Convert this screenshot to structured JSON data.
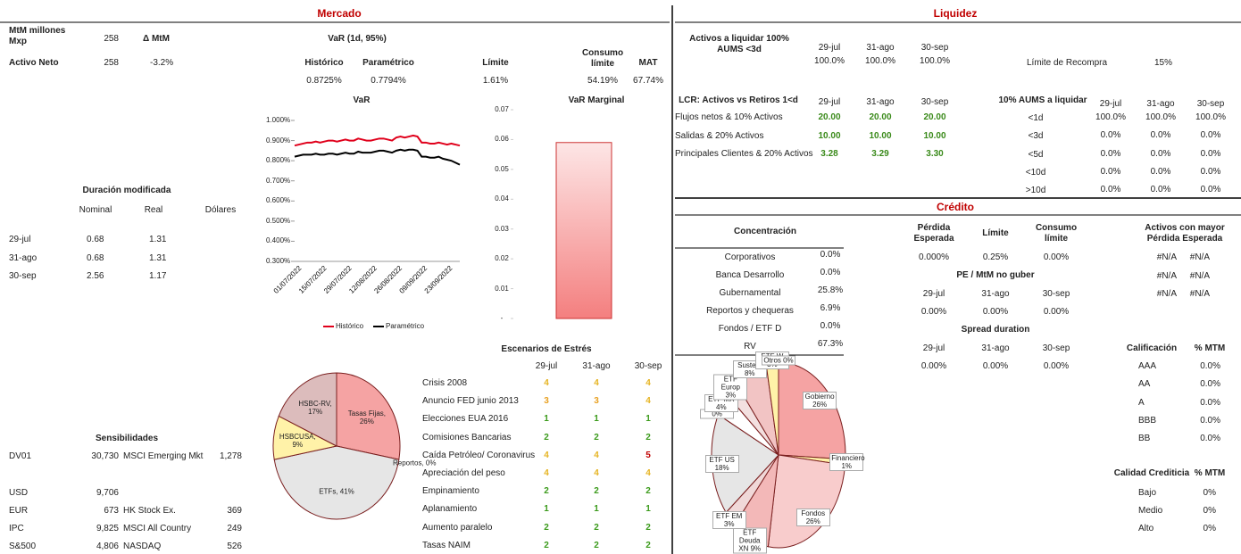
{
  "mercado": {
    "title": "Mercado",
    "mtm_label": "MtM millones Mxp",
    "mtm": "258",
    "delta_label": "Δ MtM",
    "activo_neto_label": "Activo Neto",
    "activo_neto": "258",
    "delta": "-3.2%",
    "var_table": {
      "title": "VaR (1d, 95%)",
      "headers": [
        "Histórico",
        "Paramétrico",
        "Límite",
        "Consumo límite",
        "MAT"
      ],
      "values": [
        "0.8725%",
        "0.7794%",
        "1.61%",
        "54.19%",
        "67.74%"
      ]
    },
    "var_chart": {
      "type": "line",
      "title": "VaR",
      "ylim": [
        0.3,
        1.0
      ],
      "yticks": [
        {
          "value": 1.0,
          "label": "1.000%"
        },
        {
          "value": 0.9,
          "label": "0.900%"
        },
        {
          "value": 0.8,
          "label": "0.800%"
        },
        {
          "value": 0.7,
          "label": "0.700%"
        },
        {
          "value": 0.6,
          "label": "0.600%"
        },
        {
          "value": 0.5,
          "label": "0.500%"
        },
        {
          "value": 0.4,
          "label": "0.400%"
        },
        {
          "value": 0.3,
          "label": "0.300%"
        }
      ],
      "xticks": [
        "01/07/2022",
        "15/07/2022",
        "29/07/2022",
        "12/08/2022",
        "26/08/2022",
        "09/09/2022",
        "23/09/2022"
      ],
      "series": [
        {
          "name": "Histórico",
          "color": "#e0001b",
          "values": [
            0.875,
            0.88,
            0.885,
            0.89,
            0.89,
            0.895,
            0.89,
            0.895,
            0.9,
            0.9,
            0.895,
            0.9,
            0.905,
            0.9,
            0.9,
            0.91,
            0.905,
            0.9,
            0.9,
            0.905,
            0.91,
            0.91,
            0.905,
            0.9,
            0.915,
            0.92,
            0.915,
            0.92,
            0.925,
            0.92,
            0.89,
            0.89,
            0.885,
            0.885,
            0.89,
            0.885,
            0.88,
            0.885,
            0.88,
            0.875
          ]
        },
        {
          "name": "Paramétrico",
          "color": "#000000",
          "values": [
            0.82,
            0.825,
            0.83,
            0.83,
            0.83,
            0.835,
            0.83,
            0.83,
            0.835,
            0.835,
            0.83,
            0.835,
            0.84,
            0.835,
            0.835,
            0.845,
            0.84,
            0.84,
            0.84,
            0.845,
            0.85,
            0.85,
            0.845,
            0.84,
            0.85,
            0.855,
            0.85,
            0.855,
            0.855,
            0.85,
            0.82,
            0.82,
            0.815,
            0.815,
            0.82,
            0.81,
            0.805,
            0.8,
            0.79,
            0.78
          ]
        }
      ]
    },
    "marginal_chart": {
      "type": "bar",
      "title": "VaR Marginal",
      "ylim": [
        0,
        0.07
      ],
      "yticks": [
        {
          "value": 0.07,
          "label": "0.07"
        },
        {
          "value": 0.06,
          "label": "0.06"
        },
        {
          "value": 0.05,
          "label": "0.05"
        },
        {
          "value": 0.04,
          "label": "0.04"
        },
        {
          "value": 0.03,
          "label": "0.03"
        },
        {
          "value": 0.02,
          "label": "0.02"
        },
        {
          "value": 0.01,
          "label": "0.01"
        },
        {
          "value": 0,
          "label": "-"
        }
      ],
      "values": [
        0.059
      ],
      "color": "#f47f7f"
    },
    "duracion": {
      "title": "Duración modificada",
      "headers": [
        "Nominal",
        "Real",
        "Dólares"
      ],
      "rows": [
        [
          "29-jul",
          "0.68",
          "1.31"
        ],
        [
          "31-ago",
          "0.68",
          "1.31"
        ],
        [
          "30-sep",
          "2.56",
          "1.17"
        ]
      ]
    },
    "sensibilidades": {
      "title": "Sensibilidades",
      "rows": [
        [
          "DV01",
          "30,730",
          "MSCI Emerging Mkt",
          "1,278"
        ],
        [
          "USD",
          "9,706"
        ],
        [
          "EUR",
          "673",
          "HK Stock Ex.",
          "369"
        ],
        [
          "IPC",
          "9,825",
          "MSCI All Country",
          "249"
        ],
        [
          "S&500",
          "4,806",
          "NASDAQ",
          "526"
        ]
      ]
    },
    "pie": {
      "type": "pie",
      "slices": [
        {
          "label": "Tasas Fijas, 26%",
          "value": 26,
          "color": "#f5a3a3"
        },
        {
          "label": "Reportos, 0%",
          "value": 0,
          "color": "#b09a9a"
        },
        {
          "label": "ETFs, 41%",
          "value": 41,
          "color": "#e6e6e6"
        },
        {
          "label": "HSBCUSA, 9%",
          "value": 9,
          "color": "#fff2a8"
        },
        {
          "label": "HSBC-RV, 17%",
          "value": 17,
          "color": "#dcbcbc"
        }
      ]
    },
    "estres": {
      "title": "Escenarios de Estrés",
      "headers": [
        "29-jul",
        "31-ago",
        "30-sep"
      ],
      "level_colors": {
        "1": "#3a9a1a",
        "2": "#3a9a1a",
        "3": "#e8a020",
        "4": "#e6b422",
        "5": "#c00000"
      },
      "rows": [
        [
          "Crisis 2008",
          "4",
          "4",
          "4"
        ],
        [
          "Anuncio FED junio 2013",
          "3",
          "3",
          "4"
        ],
        [
          "Elecciones EUA 2016",
          "1",
          "1",
          "1"
        ],
        [
          "Comisiones Bancarias",
          "2",
          "2",
          "2"
        ],
        [
          "Caída Petróleo/ Coronavirus",
          "4",
          "4",
          "5"
        ],
        [
          "Apreciación del peso",
          "4",
          "4",
          "4"
        ],
        [
          "Empinamiento",
          "2",
          "2",
          "2"
        ],
        [
          "Aplanamiento",
          "1",
          "1",
          "1"
        ],
        [
          "Aumento paralelo",
          "2",
          "2",
          "2"
        ],
        [
          "Tasas NAIM",
          "2",
          "2",
          "2"
        ]
      ]
    }
  },
  "liquidez": {
    "title": "Liquidez",
    "activos": {
      "label": "Activos a liquidar 100% AUMS <3d",
      "dates": [
        "29-jul",
        "31-ago",
        "30-sep"
      ],
      "values": [
        "100.0%",
        "100.0%",
        "100.0%"
      ]
    },
    "limite_label": "Límite de Recompra",
    "limite": "15%",
    "lcr": {
      "title": "LCR: Activos vs Retiros 1<d",
      "dates": [
        "29-jul",
        "31-ago",
        "30-sep"
      ],
      "rows": [
        [
          "Flujos netos & 10% Activos",
          "20.00",
          "20.00",
          "20.00"
        ],
        [
          "Salidas & 20% Activos",
          "10.00",
          "10.00",
          "10.00"
        ],
        [
          "Principales Clientes & 20% Activos",
          "3.28",
          "3.29",
          "3.30"
        ]
      ]
    },
    "aums": {
      "title": "10% AUMS a liquidar",
      "dates": [
        "29-jul",
        "31-ago",
        "30-sep"
      ],
      "rows": [
        [
          "<1d",
          "100.0%",
          "100.0%",
          "100.0%"
        ],
        [
          "<3d",
          "0.0%",
          "0.0%",
          "0.0%"
        ],
        [
          "<5d",
          "0.0%",
          "0.0%",
          "0.0%"
        ],
        [
          "<10d",
          "0.0%",
          "0.0%",
          "0.0%"
        ],
        [
          ">10d",
          "0.0%",
          "0.0%",
          "0.0%"
        ]
      ]
    }
  },
  "credito": {
    "title": "Crédito",
    "concentracion": {
      "title": "Concentración",
      "rows": [
        [
          "Corporativos",
          "0.0%"
        ],
        [
          "Banca Desarrollo",
          "0.0%"
        ],
        [
          "Gubernamental",
          "25.8%"
        ],
        [
          "Reportos y chequeras",
          "6.9%"
        ],
        [
          "Fondos / ETF D",
          "0.0%"
        ],
        [
          "RV",
          "67.3%"
        ]
      ]
    },
    "perdida": {
      "headers": [
        "Pérdida Esperada",
        "Límite",
        "Consumo límite"
      ],
      "values": [
        "0.000%",
        "0.25%",
        "0.00%"
      ]
    },
    "pe_mtm": {
      "title": "PE / MtM no guber",
      "dates": [
        "29-jul",
        "31-ago",
        "30-sep"
      ],
      "values": [
        "0.00%",
        "0.00%",
        "0.00%"
      ]
    },
    "spread": {
      "title": "Spread duration",
      "dates": [
        "29-jul",
        "31-ago",
        "30-sep"
      ],
      "values": [
        "0.00%",
        "0.00%",
        "0.00%"
      ]
    },
    "activos_pe": {
      "title": "Activos con mayor Pérdida Esperada",
      "rows": [
        [
          "#N/A",
          "#N/A"
        ],
        [
          "#N/A",
          "#N/A"
        ],
        [
          "#N/A",
          "#N/A"
        ]
      ]
    },
    "calificacion": {
      "headers": [
        "Calificación",
        "% MTM"
      ],
      "rows": [
        [
          "AAA",
          "0.0%"
        ],
        [
          "AA",
          "0.0%"
        ],
        [
          "A",
          "0.0%"
        ],
        [
          "BBB",
          "0.0%"
        ],
        [
          "BB",
          "0.0%"
        ]
      ]
    },
    "calidad": {
      "headers": [
        "Calidad Crediticia",
        "% MTM"
      ],
      "rows": [
        [
          "Bajo",
          "0%"
        ],
        [
          "Medio",
          "0%"
        ],
        [
          "Alto",
          "0%"
        ]
      ]
    },
    "pie": {
      "type": "pie",
      "slices": [
        {
          "label": "Gobierno 26%",
          "value": 26,
          "color": "#f5a3a3"
        },
        {
          "label": "Financiero 1%",
          "value": 1,
          "color": "#fff2a8"
        },
        {
          "label": "Fondos 26%",
          "value": 26,
          "color": "#f8cccc"
        },
        {
          "label": "ETF Deuda XN 9%",
          "value": 9,
          "color": "#f3b8b8"
        },
        {
          "label": "ETF EM 3%",
          "value": 3,
          "color": "#f0d8d8"
        },
        {
          "label": "ETF US 18%",
          "value": 18,
          "color": "#e6e6e6"
        },
        {
          "label": "0%",
          "value": 0,
          "color": "#ffffff"
        },
        {
          "label": "ETF MX 4%",
          "value": 4,
          "color": "#ffffff"
        },
        {
          "label": "ETF Europ 3%",
          "value": 3,
          "color": "#f3e0e0"
        },
        {
          "label": "Sustent 8%",
          "value": 8,
          "color": "#f2c4c4"
        },
        {
          "label": "ETF W 3%",
          "value": 3,
          "color": "#fff2a8"
        },
        {
          "label": "ETI 0%",
          "value": 0,
          "color": "#eeeeee"
        },
        {
          "label": "Otros 0%",
          "value": 0,
          "color": "#dddddd"
        }
      ]
    }
  }
}
